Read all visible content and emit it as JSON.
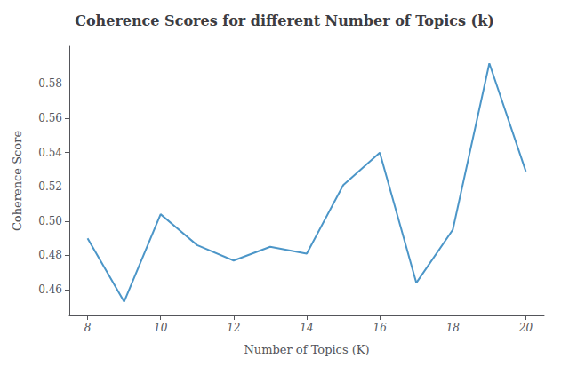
{
  "chart_data": {
    "type": "line",
    "title": "Coherence Scores for different Number of Topics (k)",
    "xlabel": "Number of Topics (K)",
    "ylabel": "Coherence Score",
    "x": [
      8,
      9,
      10,
      11,
      12,
      13,
      14,
      15,
      16,
      17,
      18,
      19,
      20
    ],
    "values": [
      0.49,
      0.453,
      0.504,
      0.486,
      0.477,
      0.485,
      0.481,
      0.521,
      0.54,
      0.464,
      0.495,
      0.592,
      0.529
    ],
    "color": "#4c96c8",
    "xlim": [
      7.5,
      20.5
    ],
    "ylim": [
      0.445,
      0.602
    ],
    "xticks": [
      8,
      10,
      12,
      14,
      16,
      18,
      20
    ],
    "yticks": [
      0.46,
      0.48,
      {
        "value": 0.5,
        "label": "0.50"
      },
      0.52,
      0.54,
      0.56,
      0.58
    ],
    "grid": false
  }
}
